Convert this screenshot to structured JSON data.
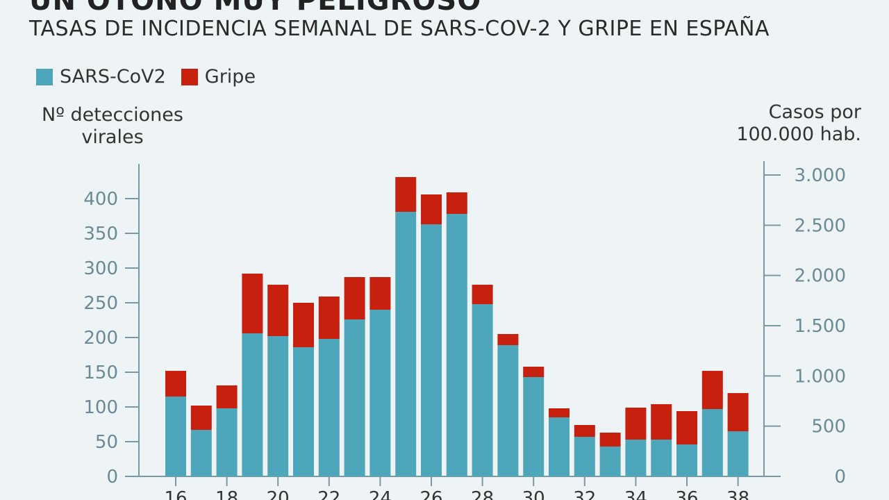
{
  "header": {
    "title": "UN OTOÑO MUY PELIGROSO",
    "subtitle": "TASAS DE INCIDENCIA SEMANAL DE  SARS-COV-2 Y GRIPE EN ESPAÑA"
  },
  "legend": [
    {
      "label": "SARS-CoV2",
      "color": "#4ea6bb"
    },
    {
      "label": "Gripe",
      "color": "#c8200e"
    }
  ],
  "axes": {
    "left_label": "Nº detecciones virales",
    "right_label": "Casos por 100.000 hab."
  },
  "chart_data": {
    "type": "bar",
    "stacked": true,
    "x": [
      16,
      17,
      18,
      19,
      20,
      21,
      22,
      23,
      24,
      25,
      26,
      27,
      28,
      29,
      30,
      31,
      32,
      33,
      34,
      35,
      36,
      37,
      38
    ],
    "x_tick_labels": [
      "16",
      "18",
      "20",
      "22",
      "24",
      "26",
      "28",
      "30",
      "32",
      "34",
      "36",
      "38"
    ],
    "series": [
      {
        "name": "SARS-CoV2",
        "color": "#4ea6bb",
        "values": [
          115,
          67,
          98,
          206,
          202,
          186,
          198,
          226,
          240,
          381,
          363,
          378,
          248,
          189,
          143,
          85,
          57,
          43,
          53,
          53,
          46,
          97,
          65
        ]
      },
      {
        "name": "Gripe",
        "color": "#c8200e",
        "values": [
          37,
          35,
          33,
          86,
          74,
          64,
          61,
          61,
          47,
          50,
          43,
          31,
          28,
          16,
          15,
          13,
          17,
          20,
          46,
          51,
          48,
          55,
          55
        ]
      }
    ],
    "ylabel": "Nº detecciones virales",
    "ylim": [
      0,
      450
    ],
    "yticks": [
      0,
      50,
      100,
      150,
      200,
      250,
      300,
      350,
      400
    ],
    "ytick_labels": [
      "0",
      "50",
      "100",
      "150",
      "200",
      "250",
      "300",
      "350",
      "400"
    ],
    "y2label": "Casos por 100.000 hab.",
    "y2lim": [
      0,
      3000
    ],
    "y2ticks": [
      0,
      500,
      1000,
      1500,
      2000,
      2500,
      3000
    ],
    "y2tick_labels": [
      "0",
      "500",
      "1.000",
      "1.500",
      "2.000",
      "2.500",
      "3.000"
    ],
    "grid": false
  }
}
